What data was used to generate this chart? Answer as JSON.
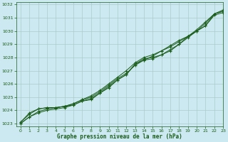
{
  "xlabel": "Graphe pression niveau de la mer (hPa)",
  "bg_color": "#cce8f0",
  "grid_color": "#aacccc",
  "line_color": "#1a5c1a",
  "xlim": [
    -0.5,
    23
  ],
  "ylim": [
    1022.8,
    1032.2
  ],
  "xticks": [
    0,
    1,
    2,
    3,
    4,
    5,
    6,
    7,
    8,
    9,
    10,
    11,
    12,
    13,
    14,
    15,
    16,
    17,
    18,
    19,
    20,
    21,
    22,
    23
  ],
  "yticks": [
    1023,
    1024,
    1025,
    1026,
    1027,
    1028,
    1029,
    1030,
    1031,
    1032
  ],
  "series": [
    [
      1023.1,
      1023.8,
      1024.1,
      1024.2,
      1024.2,
      1024.3,
      1024.5,
      1024.8,
      1025.1,
      1025.5,
      1026.0,
      1026.5,
      1027.0,
      1027.6,
      1028.0,
      1028.2,
      1028.5,
      1028.8,
      1029.2,
      1029.6,
      1030.0,
      1030.4,
      1031.3,
      1031.5
    ],
    [
      1023.1,
      1023.7,
      1024.1,
      1024.2,
      1024.2,
      1024.3,
      1024.5,
      1024.8,
      1025.0,
      1025.4,
      1025.9,
      1026.4,
      1026.8,
      1027.4,
      1027.8,
      1028.1,
      1028.5,
      1028.9,
      1029.3,
      1029.6,
      1030.0,
      1030.4,
      1031.2,
      1031.4
    ],
    [
      1023.0,
      1023.5,
      1023.9,
      1024.1,
      1024.2,
      1024.3,
      1024.4,
      1024.7,
      1024.9,
      1025.3,
      1025.8,
      1026.3,
      1026.7,
      1027.5,
      1027.9,
      1028.0,
      1028.2,
      1028.6,
      1029.0,
      1029.6,
      1030.1,
      1030.7,
      1031.3,
      1031.6
    ],
    [
      1023.0,
      1023.5,
      1023.8,
      1024.0,
      1024.1,
      1024.2,
      1024.4,
      1024.7,
      1024.8,
      1025.3,
      1025.7,
      1026.3,
      1026.7,
      1027.5,
      1027.8,
      1027.9,
      1028.2,
      1028.5,
      1029.0,
      1029.5,
      1030.0,
      1030.6,
      1031.3,
      1031.5
    ]
  ]
}
